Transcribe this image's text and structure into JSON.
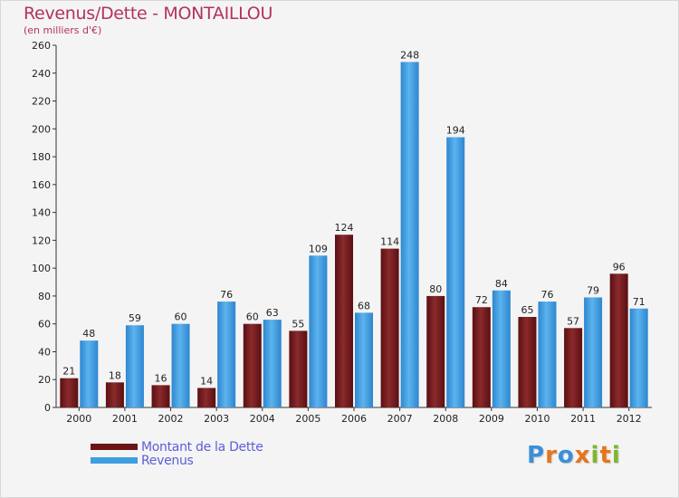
{
  "chart_data": {
    "type": "bar",
    "title": "Revenus/Dette - MONTAILLOU",
    "subtitle": "(en milliers d'€)",
    "categories": [
      "2000",
      "2001",
      "2002",
      "2003",
      "2004",
      "2005",
      "2006",
      "2007",
      "2008",
      "2009",
      "2010",
      "2011",
      "2012"
    ],
    "series": [
      {
        "name": "Montant de la Dette",
        "color": "#6b1518",
        "values": [
          21,
          18,
          16,
          14,
          60,
          55,
          124,
          114,
          80,
          72,
          65,
          57,
          96
        ]
      },
      {
        "name": "Revenus",
        "color": "#3d9ee0",
        "values": [
          48,
          59,
          60,
          76,
          63,
          109,
          68,
          248,
          194,
          84,
          76,
          79,
          71
        ]
      }
    ],
    "ylim": [
      0,
      260
    ],
    "ytick_step": 20,
    "grid": false,
    "legend_position": "bottom-left"
  },
  "logo": {
    "letters": [
      "P",
      "r",
      "o",
      "x",
      "i",
      "t",
      "i"
    ],
    "colors": [
      "#3a8fd8",
      "#e8741a",
      "#3a8fd8",
      "#e8741a",
      "#7cb82f",
      "#e8741a",
      "#7cb82f"
    ]
  }
}
